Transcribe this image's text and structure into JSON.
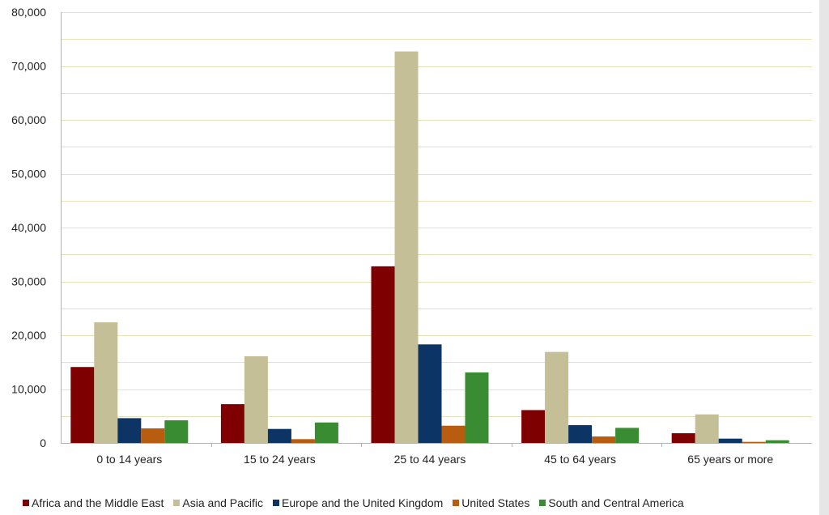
{
  "chart_data": {
    "type": "bar",
    "title": "",
    "xlabel": "",
    "ylabel": "",
    "ylim": [
      0,
      80000
    ],
    "y_tick_values": [
      0,
      10000,
      20000,
      30000,
      40000,
      50000,
      60000,
      70000,
      80000
    ],
    "y_tick_labels": [
      "0",
      "10,000",
      "20,000",
      "30,000",
      "40,000",
      "50,000",
      "60,000",
      "70,000",
      "80,000"
    ],
    "grid": true,
    "legend_position": "bottom",
    "categories": [
      "0 to 14 years",
      "15 to 24 years",
      "25 to 44 years",
      "45 to 64 years",
      "65 years or more"
    ],
    "series": [
      {
        "name": "Africa and the Middle East",
        "color": "#7f0000",
        "values": [
          14100,
          7200,
          32800,
          6100,
          1800
        ]
      },
      {
        "name": "Asia and Pacific",
        "color": "#c4bf96",
        "values": [
          22400,
          16100,
          72700,
          16900,
          5300
        ]
      },
      {
        "name": "Europe and the United Kingdom",
        "color": "#0c3566",
        "values": [
          4600,
          2600,
          18300,
          3300,
          800
        ]
      },
      {
        "name": "United States",
        "color": "#b85c10",
        "values": [
          2700,
          700,
          3200,
          1200,
          200
        ]
      },
      {
        "name": "South and Central America",
        "color": "#3a8c33",
        "values": [
          4200,
          3800,
          13100,
          2800,
          500
        ]
      }
    ],
    "colors": {
      "gridline": "#e6e3b8",
      "axis": "#b3b3b3"
    }
  }
}
